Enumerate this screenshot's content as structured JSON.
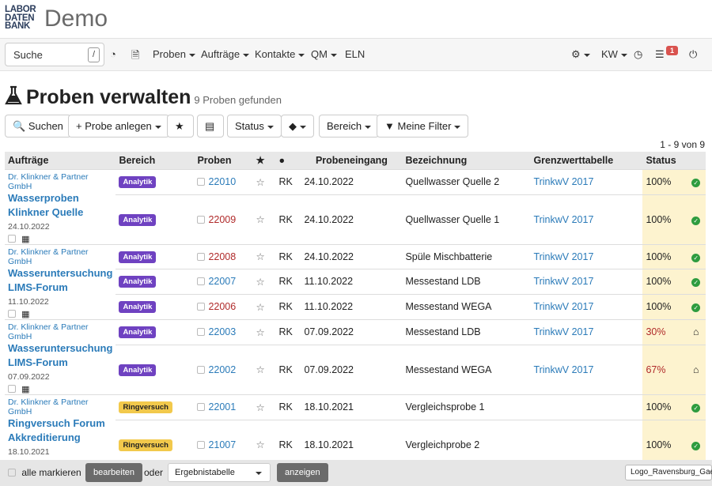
{
  "app": {
    "logo_lines": [
      "LABOR",
      "DATEN",
      "BANK"
    ],
    "title": "Demo"
  },
  "nav": {
    "search_placeholder": "Suche",
    "search_shortcut": "/",
    "items": [
      "Proben",
      "Aufträge",
      "Kontakte",
      "QM",
      "ELN"
    ],
    "right": {
      "user": "KW",
      "badge": "1"
    }
  },
  "page": {
    "title": "Proben verwalten",
    "subtitle": "9 Proben gefunden"
  },
  "toolbar": {
    "search": "Suchen",
    "add": "Probe anlegen",
    "status": "Status",
    "area": "Bereich",
    "filter": "Meine Filter"
  },
  "pager": "1 - 9 von 9",
  "table": {
    "headers": [
      "Aufträge",
      "Bereich",
      "Proben",
      "",
      "",
      "Probeneingang",
      "Bezeichnung",
      "Grenzwerttabelle",
      "Status",
      ""
    ],
    "rows": [
      {
        "org": "Dr. Klinkner & Partner GmbH",
        "title1": "Wasserproben",
        "title2": "Klinkner Quelle",
        "date": "24.10.2022",
        "area": "Analytik",
        "id": "22010",
        "idc": "lnk",
        "init": "RK",
        "in": "24.10.2022",
        "name": "Quellwasser Quelle 2",
        "gw": "TrinkwV 2017",
        "st": "100%",
        "sc": "",
        "ic": "ok"
      },
      {
        "area": "Analytik",
        "id": "22009",
        "idc": "red",
        "init": "RK",
        "in": "24.10.2022",
        "name": "Quellwasser Quelle 1",
        "gw": "TrinkwV 2017",
        "st": "100%",
        "sc": "",
        "ic": "ok"
      },
      {
        "org": "Dr. Klinkner & Partner GmbH",
        "title1": "Wasseruntersuchung",
        "title2": "LIMS-Forum",
        "date": "11.10.2022",
        "area": "Analytik",
        "id": "22008",
        "idc": "red",
        "init": "RK",
        "in": "24.10.2022",
        "name": "Spüle Mischbatterie",
        "gw": "TrinkwV 2017",
        "st": "100%",
        "sc": "",
        "ic": "ok"
      },
      {
        "area": "Analytik",
        "id": "22007",
        "idc": "lnk",
        "init": "RK",
        "in": "11.10.2022",
        "name": "Messestand LDB",
        "gw": "TrinkwV 2017",
        "st": "100%",
        "sc": "",
        "ic": "ok"
      },
      {
        "area": "Analytik",
        "id": "22006",
        "idc": "red",
        "init": "RK",
        "in": "11.10.2022",
        "name": "Messestand WEGA",
        "gw": "TrinkwV 2017",
        "st": "100%",
        "sc": "",
        "ic": "ok"
      },
      {
        "org": "Dr. Klinkner & Partner GmbH",
        "title1": "Wasseruntersuchung",
        "title2": "LIMS-Forum",
        "date": "07.09.2022",
        "area": "Analytik",
        "id": "22003",
        "idc": "lnk",
        "init": "RK",
        "in": "07.09.2022",
        "name": "Messestand LDB",
        "gw": "TrinkwV 2017",
        "st": "30%",
        "sc": "red",
        "ic": "home"
      },
      {
        "area": "Analytik",
        "id": "22002",
        "idc": "lnk",
        "init": "RK",
        "in": "07.09.2022",
        "name": "Messestand WEGA",
        "gw": "TrinkwV 2017",
        "st": "67%",
        "sc": "red",
        "ic": "home"
      },
      {
        "org": "Dr. Klinkner & Partner GmbH",
        "title1": "Ringversuch Forum",
        "title2": "Akkreditierung",
        "date": "18.10.2021",
        "area": "Ringversuch",
        "id": "22001",
        "idc": "lnk",
        "init": "RK",
        "in": "18.10.2021",
        "name": "Vergleichsprobe 1",
        "gw": "",
        "st": "100%",
        "sc": "",
        "ic": "ok"
      },
      {
        "area": "Ringversuch",
        "id": "21007",
        "idc": "lnk",
        "init": "RK",
        "in": "18.10.2021",
        "name": "Vergleichprobe 2",
        "gw": "",
        "st": "100%",
        "sc": "",
        "ic": "ok"
      }
    ]
  },
  "footer": {
    "select_all": "alle markieren",
    "edit": "bearbeiten",
    "or": "oder",
    "select": "Ergebnistabelle",
    "show": "anzeigen",
    "tooltip": "Logo_Ravensburg_Gae"
  },
  "colors": {
    "analytik": "#6f42c1",
    "ringversuch": "#f2c94c",
    "ok": "#2e9c3f",
    "link": "#2b7bb9",
    "status_bg": "#fdf3cf"
  }
}
